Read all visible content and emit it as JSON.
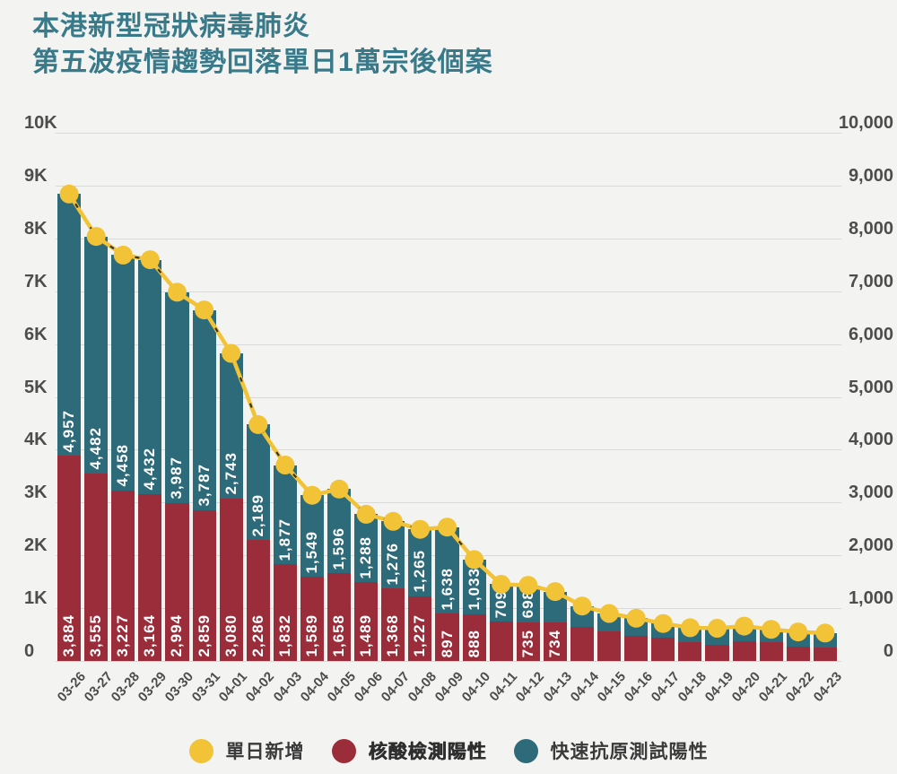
{
  "title": {
    "line1": "本港新型冠狀病毒肺炎",
    "line2": "第五波疫情趨勢回落單日1萬宗後個案"
  },
  "colors": {
    "background": "#f3f3f1",
    "title": "#38798a",
    "pcr_bar": "#9b2d3a",
    "rat_bar": "#2e6b7a",
    "daily_line": "#f2c337",
    "dash_overlay": "#333333",
    "grid": "#d9d9d9",
    "axis_text": "#4d4d4d",
    "bar_label_text": "#ffffff"
  },
  "axes": {
    "left_ticks": [
      "10K",
      "9K",
      "8K",
      "7K",
      "6K",
      "5K",
      "4K",
      "3K",
      "2K",
      "1K",
      "0"
    ],
    "right_ticks": [
      "10,000",
      "9,000",
      "8,000",
      "7,000",
      "6,000",
      "5,000",
      "4,000",
      "3,000",
      "2,000",
      "1,000",
      "0"
    ]
  },
  "legend": [
    {
      "name": "單日新增",
      "color": "#f2c337",
      "heavy": false
    },
    {
      "name": "核酸檢測陽性",
      "color": "#9b2d3a",
      "heavy": true
    },
    {
      "name": "快速抗原測試陽性",
      "color": "#2e6b7a",
      "heavy": false
    }
  ],
  "chart_data": {
    "type": "bar",
    "stacked": true,
    "title": "本港新型冠狀病毒肺炎 第五波疫情趨勢回落單日1萬宗後個案",
    "xlabel": "",
    "ylabel": "",
    "ylim": [
      0,
      10000
    ],
    "grid": "horizontal",
    "legend_position": "bottom",
    "categories": [
      "03-26",
      "03-27",
      "03-28",
      "03-29",
      "03-30",
      "03-31",
      "04-01",
      "04-02",
      "04-03",
      "04-04",
      "04-05",
      "04-06",
      "04-07",
      "04-08",
      "04-09",
      "04-10",
      "04-11",
      "04-12",
      "04-13",
      "04-14",
      "04-15",
      "04-16",
      "04-17",
      "04-18",
      "04-19",
      "04-20",
      "04-21",
      "04-22",
      "04-23"
    ],
    "series": [
      {
        "name": "核酸檢測陽性",
        "color": "#9b2d3a",
        "values": [
          3884,
          3555,
          3227,
          3164,
          2994,
          2859,
          3080,
          2286,
          1832,
          1589,
          1658,
          1489,
          1368,
          1227,
          897,
          888,
          743,
          735,
          734,
          640,
          560,
          480,
          440,
          350,
          310,
          380,
          360,
          270,
          250
        ],
        "labels": [
          "3,884",
          "3,555",
          "3,227",
          "3,164",
          "2,994",
          "2,859",
          "3,080",
          "2,286",
          "1,832",
          "1,589",
          "1,658",
          "1,489",
          "1,368",
          "1,227",
          "897",
          "888",
          "",
          "735",
          "734",
          "",
          "",
          "",
          "",
          "",
          "",
          "",
          "",
          "",
          ""
        ]
      },
      {
        "name": "快速抗原測試陽性",
        "color": "#2e6b7a",
        "values": [
          4957,
          4482,
          4458,
          4432,
          3987,
          3787,
          2743,
          2189,
          1877,
          1549,
          1596,
          1288,
          1276,
          1265,
          1638,
          1033,
          709,
          698,
          580,
          400,
          340,
          330,
          270,
          280,
          310,
          280,
          240,
          280,
          280
        ],
        "labels": [
          "4,957",
          "4,482",
          "4,458",
          "4,432",
          "3,987",
          "3,787",
          "2,743",
          "2,189",
          "1,877",
          "1,549",
          "1,596",
          "1,288",
          "1,276",
          "1,265",
          "1,638",
          "1,033",
          "709",
          "698",
          "",
          "",
          "",
          "",
          "",
          "",
          "",
          "",
          "",
          "",
          ""
        ]
      }
    ],
    "line_series": {
      "name": "單日新增",
      "color": "#f2c337",
      "values": [
        8841,
        8037,
        7685,
        7596,
        6981,
        6646,
        5823,
        4475,
        3709,
        3138,
        3254,
        2777,
        2644,
        2492,
        2535,
        1921,
        1452,
        1433,
        1314,
        1040,
        900,
        810,
        710,
        630,
        620,
        660,
        600,
        550,
        530
      ]
    }
  }
}
